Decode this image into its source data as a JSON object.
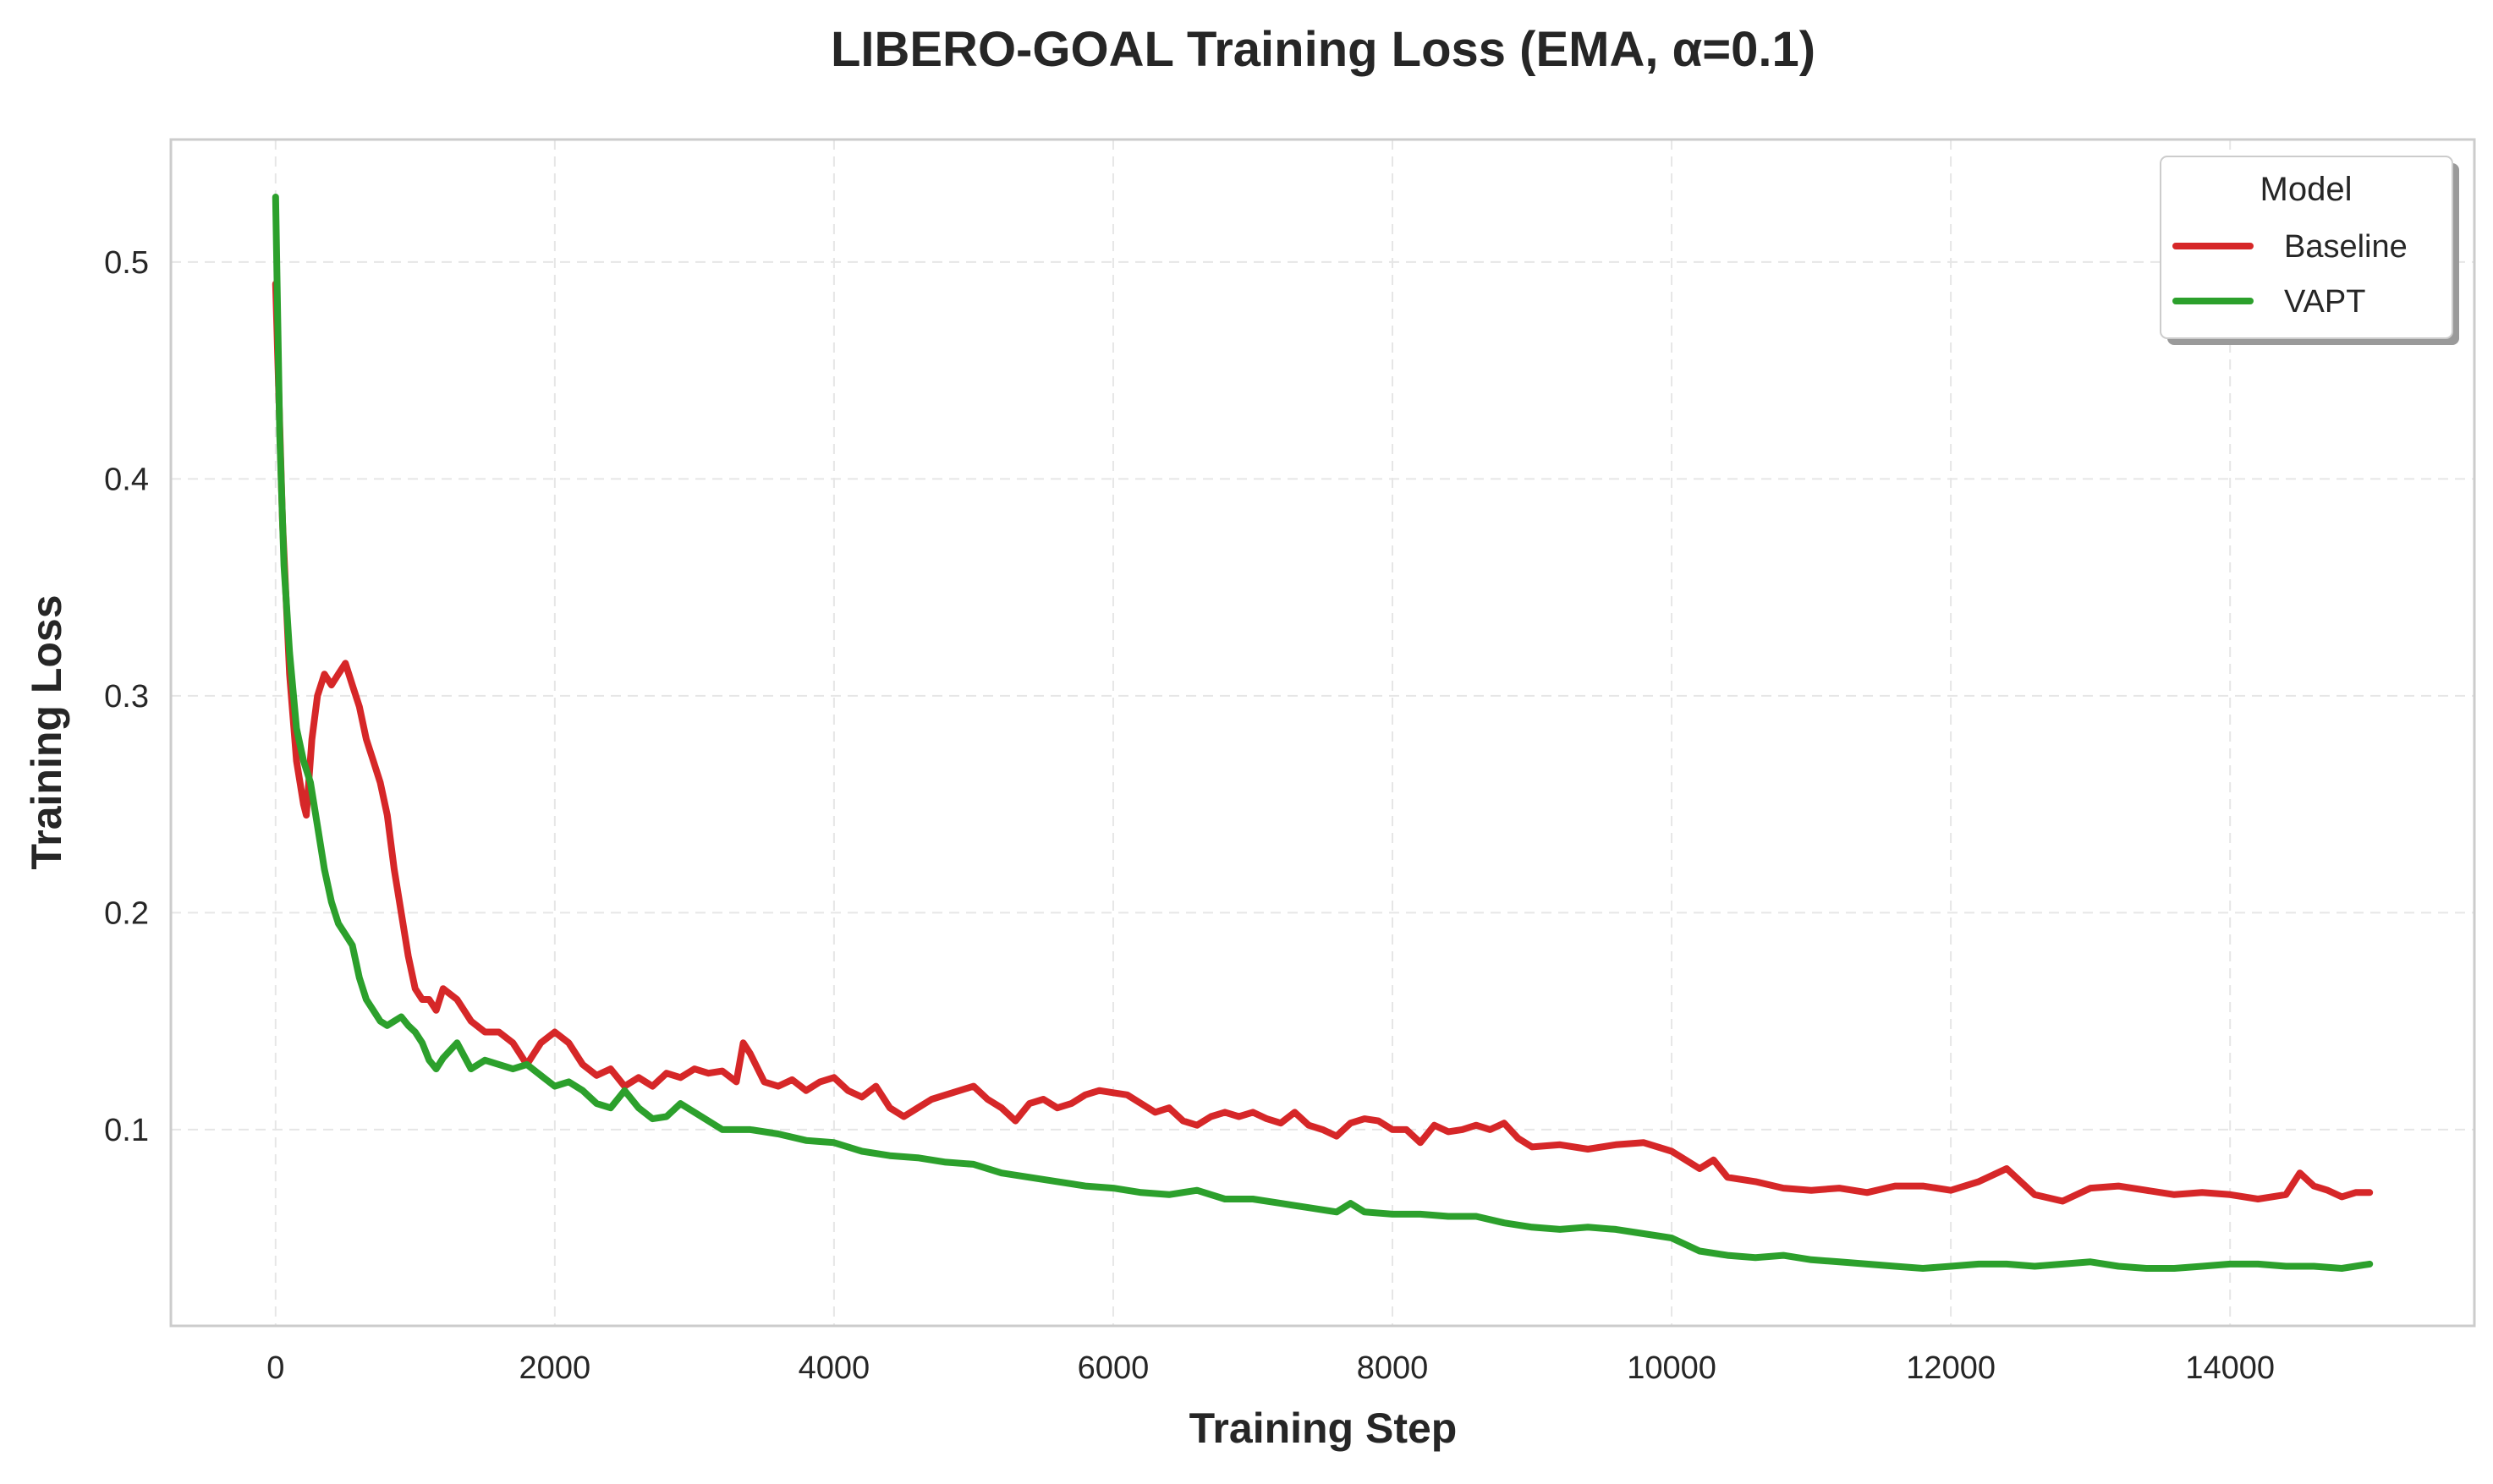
{
  "chart_data": {
    "type": "line",
    "title": "LIBERO-GOAL Training Loss (EMA, α=0.1)",
    "xlabel": "Training Step",
    "ylabel": "Training Loss",
    "xlim": [
      -750,
      15750
    ],
    "ylim": [
      0.0095,
      0.5565
    ],
    "xticks": [
      0,
      2000,
      4000,
      6000,
      8000,
      10000,
      12000,
      14000
    ],
    "xtick_labels": [
      "0",
      "2000",
      "4000",
      "6000",
      "8000",
      "10000",
      "12000",
      "14000"
    ],
    "yticks": [
      0.1,
      0.2,
      0.3,
      0.4,
      0.5
    ],
    "ytick_labels": [
      "0.1",
      "0.2",
      "0.3",
      "0.4",
      "0.5"
    ],
    "grid": true,
    "legend": {
      "title": "Model",
      "position": "top-right"
    },
    "series": [
      {
        "name": "Baseline",
        "color": "#d62728",
        "x": [
          0,
          50,
          100,
          150,
          200,
          220,
          260,
          300,
          350,
          400,
          450,
          500,
          550,
          600,
          650,
          700,
          750,
          800,
          850,
          900,
          950,
          1000,
          1050,
          1100,
          1150,
          1200,
          1300,
          1400,
          1500,
          1600,
          1700,
          1800,
          1900,
          2000,
          2100,
          2200,
          2300,
          2400,
          2500,
          2600,
          2700,
          2800,
          2900,
          3000,
          3100,
          3200,
          3300,
          3350,
          3400,
          3500,
          3600,
          3700,
          3800,
          3900,
          4000,
          4100,
          4200,
          4300,
          4400,
          4500,
          4600,
          4700,
          4800,
          4900,
          5000,
          5100,
          5200,
          5300,
          5400,
          5500,
          5600,
          5700,
          5800,
          5900,
          6000,
          6100,
          6200,
          6300,
          6400,
          6500,
          6600,
          6700,
          6800,
          6900,
          7000,
          7100,
          7200,
          7300,
          7400,
          7500,
          7600,
          7700,
          7800,
          7900,
          8000,
          8100,
          8200,
          8300,
          8400,
          8500,
          8600,
          8700,
          8800,
          8900,
          9000,
          9200,
          9400,
          9600,
          9800,
          10000,
          10200,
          10300,
          10400,
          10600,
          10800,
          11000,
          11200,
          11400,
          11600,
          11800,
          12000,
          12200,
          12400,
          12600,
          12800,
          13000,
          13200,
          13400,
          13600,
          13800,
          14000,
          14200,
          14400,
          14500,
          14600,
          14700,
          14800,
          14900,
          15000
        ],
        "values": [
          0.49,
          0.38,
          0.31,
          0.27,
          0.25,
          0.245,
          0.28,
          0.3,
          0.31,
          0.305,
          0.31,
          0.315,
          0.305,
          0.295,
          0.28,
          0.27,
          0.26,
          0.245,
          0.22,
          0.2,
          0.18,
          0.165,
          0.16,
          0.16,
          0.155,
          0.165,
          0.16,
          0.15,
          0.145,
          0.145,
          0.14,
          0.13,
          0.14,
          0.145,
          0.14,
          0.13,
          0.125,
          0.128,
          0.12,
          0.124,
          0.12,
          0.126,
          0.124,
          0.128,
          0.126,
          0.127,
          0.122,
          0.14,
          0.135,
          0.122,
          0.12,
          0.123,
          0.118,
          0.122,
          0.124,
          0.118,
          0.115,
          0.12,
          0.11,
          0.106,
          0.11,
          0.114,
          0.116,
          0.118,
          0.12,
          0.114,
          0.11,
          0.104,
          0.112,
          0.114,
          0.11,
          0.112,
          0.116,
          0.118,
          0.117,
          0.116,
          0.112,
          0.108,
          0.11,
          0.104,
          0.102,
          0.106,
          0.108,
          0.106,
          0.108,
          0.105,
          0.103,
          0.108,
          0.102,
          0.1,
          0.097,
          0.103,
          0.105,
          0.104,
          0.1,
          0.1,
          0.094,
          0.102,
          0.099,
          0.1,
          0.102,
          0.1,
          0.103,
          0.096,
          0.092,
          0.093,
          0.091,
          0.093,
          0.094,
          0.09,
          0.082,
          0.086,
          0.078,
          0.076,
          0.073,
          0.072,
          0.073,
          0.071,
          0.074,
          0.074,
          0.072,
          0.076,
          0.082,
          0.07,
          0.067,
          0.073,
          0.074,
          0.072,
          0.07,
          0.071,
          0.07,
          0.068,
          0.07,
          0.08,
          0.074,
          0.072,
          0.069,
          0.071,
          0.071
        ]
      },
      {
        "name": "VAPT",
        "color": "#2ca02c",
        "x": [
          0,
          30,
          60,
          100,
          150,
          200,
          250,
          300,
          350,
          400,
          450,
          500,
          550,
          600,
          650,
          700,
          750,
          800,
          850,
          900,
          950,
          1000,
          1050,
          1100,
          1150,
          1200,
          1300,
          1400,
          1500,
          1600,
          1700,
          1800,
          1900,
          2000,
          2100,
          2200,
          2300,
          2400,
          2500,
          2600,
          2700,
          2800,
          2900,
          3000,
          3200,
          3400,
          3600,
          3800,
          4000,
          4200,
          4400,
          4600,
          4800,
          5000,
          5200,
          5400,
          5600,
          5800,
          6000,
          6200,
          6400,
          6600,
          6800,
          7000,
          7200,
          7400,
          7600,
          7700,
          7800,
          8000,
          8200,
          8400,
          8600,
          8800,
          9000,
          9200,
          9400,
          9600,
          9800,
          10000,
          10200,
          10400,
          10600,
          10800,
          11000,
          11200,
          11400,
          11600,
          11800,
          12000,
          12200,
          12400,
          12600,
          12800,
          13000,
          13200,
          13400,
          13600,
          13800,
          14000,
          14200,
          14400,
          14600,
          14800,
          15000
        ],
        "values": [
          0.53,
          0.42,
          0.36,
          0.32,
          0.285,
          0.27,
          0.26,
          0.24,
          0.22,
          0.205,
          0.195,
          0.19,
          0.185,
          0.17,
          0.16,
          0.155,
          0.15,
          0.148,
          0.15,
          0.152,
          0.148,
          0.145,
          0.14,
          0.132,
          0.128,
          0.133,
          0.14,
          0.128,
          0.132,
          0.13,
          0.128,
          0.13,
          0.125,
          0.12,
          0.122,
          0.118,
          0.112,
          0.11,
          0.118,
          0.11,
          0.105,
          0.106,
          0.112,
          0.108,
          0.1,
          0.1,
          0.098,
          0.095,
          0.094,
          0.09,
          0.088,
          0.087,
          0.085,
          0.084,
          0.08,
          0.078,
          0.076,
          0.074,
          0.073,
          0.071,
          0.07,
          0.072,
          0.068,
          0.068,
          0.066,
          0.064,
          0.062,
          0.066,
          0.062,
          0.061,
          0.061,
          0.06,
          0.06,
          0.057,
          0.055,
          0.054,
          0.055,
          0.054,
          0.052,
          0.05,
          0.044,
          0.042,
          0.041,
          0.042,
          0.04,
          0.039,
          0.038,
          0.037,
          0.036,
          0.037,
          0.038,
          0.038,
          0.037,
          0.038,
          0.039,
          0.037,
          0.036,
          0.036,
          0.037,
          0.038,
          0.038,
          0.037,
          0.037,
          0.036,
          0.038
        ]
      }
    ]
  }
}
